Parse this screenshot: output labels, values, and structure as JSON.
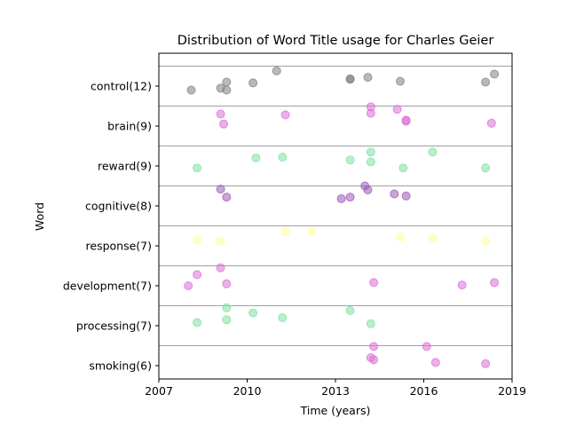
{
  "chart_data": {
    "type": "scatter",
    "title": "Distribution of Word Title usage for Charles Geier",
    "xlabel": "Time (years)",
    "ylabel": "Word",
    "xlim": [
      2007,
      2019
    ],
    "xticks": [
      "2007",
      "2010",
      "2013",
      "2016",
      "2019"
    ],
    "grid": "horizontal band separators",
    "categories": [
      "control(12)",
      "brain(9)",
      "reward(9)",
      "cognitive(8)",
      "response(7)",
      "development(7)",
      "processing(7)",
      "smoking(6)"
    ],
    "series": [
      {
        "category": "control(12)",
        "color": "#808080",
        "points": [
          {
            "x": 2008.1,
            "y": -0.1
          },
          {
            "x": 2009.1,
            "y": -0.05
          },
          {
            "x": 2009.3,
            "y": 0.1
          },
          {
            "x": 2009.3,
            "y": -0.1
          },
          {
            "x": 2010.2,
            "y": 0.08
          },
          {
            "x": 2011.0,
            "y": 0.38
          },
          {
            "x": 2013.5,
            "y": 0.18
          },
          {
            "x": 2013.5,
            "y": 0.17
          },
          {
            "x": 2014.1,
            "y": 0.22
          },
          {
            "x": 2015.2,
            "y": 0.12
          },
          {
            "x": 2018.1,
            "y": 0.1
          },
          {
            "x": 2018.4,
            "y": 0.3
          }
        ]
      },
      {
        "category": "brain(9)",
        "color": "#da70d6",
        "points": [
          {
            "x": 2009.1,
            "y": 0.3
          },
          {
            "x": 2009.2,
            "y": 0.05
          },
          {
            "x": 2011.3,
            "y": 0.28
          },
          {
            "x": 2014.2,
            "y": 0.48
          },
          {
            "x": 2014.2,
            "y": 0.32
          },
          {
            "x": 2015.1,
            "y": 0.42
          },
          {
            "x": 2015.4,
            "y": 0.15
          },
          {
            "x": 2015.4,
            "y": 0.12
          },
          {
            "x": 2018.3,
            "y": 0.07
          }
        ]
      },
      {
        "category": "reward(9)",
        "color": "#7fe0a0",
        "points": [
          {
            "x": 2008.3,
            "y": -0.05
          },
          {
            "x": 2010.3,
            "y": 0.2
          },
          {
            "x": 2011.2,
            "y": 0.22
          },
          {
            "x": 2013.5,
            "y": 0.15
          },
          {
            "x": 2014.2,
            "y": 0.35
          },
          {
            "x": 2014.2,
            "y": 0.1
          },
          {
            "x": 2015.3,
            "y": -0.05
          },
          {
            "x": 2016.3,
            "y": 0.35
          },
          {
            "x": 2018.1,
            "y": -0.05
          }
        ]
      },
      {
        "category": "cognitive(8)",
        "color": "#9b59b6",
        "points": [
          {
            "x": 2009.1,
            "y": 0.42
          },
          {
            "x": 2009.3,
            "y": 0.22
          },
          {
            "x": 2013.2,
            "y": 0.18
          },
          {
            "x": 2013.5,
            "y": 0.22
          },
          {
            "x": 2014.0,
            "y": 0.5
          },
          {
            "x": 2014.1,
            "y": 0.4
          },
          {
            "x": 2015.0,
            "y": 0.3
          },
          {
            "x": 2015.4,
            "y": 0.25
          }
        ]
      },
      {
        "category": "response(7)",
        "color": "#ffff99",
        "points": [
          {
            "x": 2008.3,
            "y": 0.15
          },
          {
            "x": 2009.1,
            "y": 0.12
          },
          {
            "x": 2011.3,
            "y": 0.35
          },
          {
            "x": 2012.2,
            "y": 0.35
          },
          {
            "x": 2015.2,
            "y": 0.22
          },
          {
            "x": 2016.3,
            "y": 0.2
          },
          {
            "x": 2018.1,
            "y": 0.12
          }
        ]
      },
      {
        "category": "development(7)",
        "color": "#da70d6",
        "points": [
          {
            "x": 2008.0,
            "y": 0.0
          },
          {
            "x": 2008.3,
            "y": 0.28
          },
          {
            "x": 2009.1,
            "y": 0.45
          },
          {
            "x": 2009.3,
            "y": 0.05
          },
          {
            "x": 2014.3,
            "y": 0.08
          },
          {
            "x": 2017.3,
            "y": 0.02
          },
          {
            "x": 2018.4,
            "y": 0.08
          }
        ]
      },
      {
        "category": "processing(7)",
        "color": "#7fe0a0",
        "points": [
          {
            "x": 2008.3,
            "y": 0.08
          },
          {
            "x": 2009.3,
            "y": 0.45
          },
          {
            "x": 2009.3,
            "y": 0.15
          },
          {
            "x": 2010.2,
            "y": 0.32
          },
          {
            "x": 2011.2,
            "y": 0.2
          },
          {
            "x": 2013.5,
            "y": 0.38
          },
          {
            "x": 2014.2,
            "y": 0.05
          }
        ]
      },
      {
        "category": "smoking(6)",
        "color": "#da70d6",
        "points": [
          {
            "x": 2014.3,
            "y": 0.48
          },
          {
            "x": 2014.2,
            "y": 0.2
          },
          {
            "x": 2014.3,
            "y": 0.15
          },
          {
            "x": 2016.1,
            "y": 0.48
          },
          {
            "x": 2016.4,
            "y": 0.08
          },
          {
            "x": 2018.1,
            "y": 0.05
          }
        ]
      }
    ]
  }
}
